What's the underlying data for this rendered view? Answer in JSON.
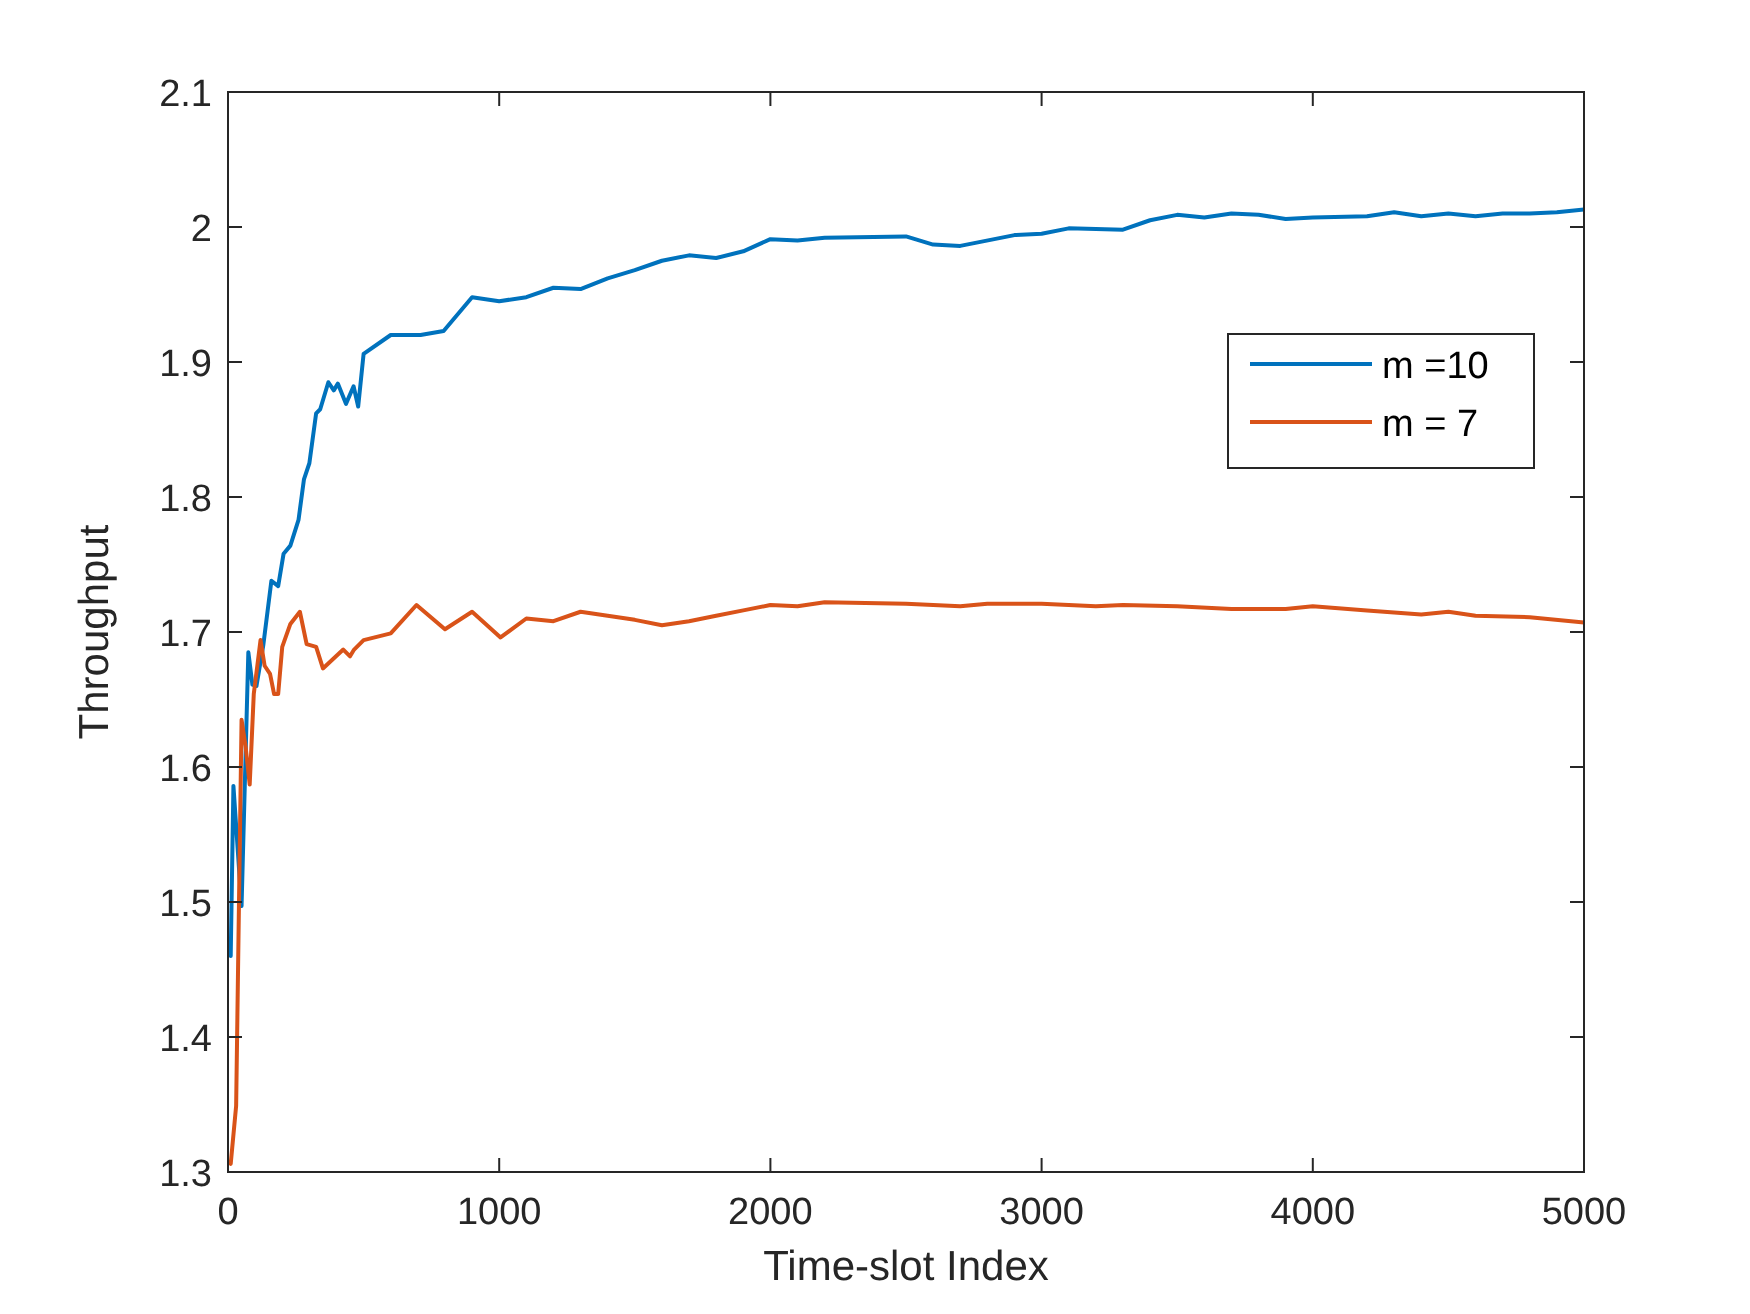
{
  "chart_data": {
    "type": "line",
    "xlabel": "Time-slot Index",
    "ylabel": "Throughput",
    "xlim": [
      0,
      5000
    ],
    "xticks": [
      0,
      1000,
      2000,
      3000,
      4000,
      5000
    ],
    "ylim": [
      1.3,
      2.1
    ],
    "yticks": [
      1.3,
      1.4,
      1.5,
      1.6,
      1.7,
      1.8,
      1.9,
      2,
      2.1
    ],
    "legend": "right",
    "grid": false,
    "line_style": "solid",
    "series": [
      {
        "name": "m =10",
        "color": "#0072bd",
        "x": [
          10,
          20,
          50,
          75,
          90,
          105,
          130,
          160,
          185,
          205,
          230,
          260,
          280,
          300,
          325,
          340,
          370,
          390,
          405,
          435,
          463,
          480,
          500,
          600,
          710,
          795,
          900,
          1000,
          1100,
          1200,
          1300,
          1400,
          1500,
          1600,
          1700,
          1800,
          1900,
          2000,
          2100,
          2200,
          2500,
          2600,
          2700,
          2900,
          3000,
          3100,
          3300,
          3400,
          3500,
          3600,
          3700,
          3800,
          3900,
          4000,
          4200,
          4300,
          4400,
          4500,
          4600,
          4700,
          4800,
          4900,
          5000
        ],
        "values": [
          1.46,
          1.586,
          1.497,
          1.685,
          1.661,
          1.66,
          1.69,
          1.738,
          1.734,
          1.758,
          1.764,
          1.783,
          1.813,
          1.825,
          1.862,
          1.865,
          1.885,
          1.879,
          1.884,
          1.869,
          1.882,
          1.867,
          1.906,
          1.92,
          1.92,
          1.923,
          1.948,
          1.945,
          1.948,
          1.955,
          1.954,
          1.962,
          1.968,
          1.975,
          1.979,
          1.977,
          1.982,
          1.991,
          1.99,
          1.992,
          1.993,
          1.987,
          1.986,
          1.994,
          1.995,
          1.999,
          1.998,
          2.005,
          2.009,
          2.007,
          2.01,
          2.009,
          2.006,
          2.007,
          2.008,
          2.011,
          2.008,
          2.01,
          2.008,
          2.01,
          2.01,
          2.011,
          2.013
        ]
      },
      {
        "name": "m = 7",
        "color": "#d95319",
        "x": [
          10,
          30,
          50,
          65,
          80,
          95,
          120,
          135,
          155,
          170,
          185,
          200,
          230,
          265,
          290,
          325,
          350,
          425,
          450,
          465,
          500,
          600,
          695,
          800,
          900,
          1005,
          1100,
          1200,
          1300,
          1400,
          1500,
          1600,
          1700,
          1800,
          1900,
          2000,
          2100,
          2200,
          2500,
          2700,
          2800,
          3000,
          3200,
          3300,
          3500,
          3700,
          3900,
          4000,
          4200,
          4400,
          4500,
          4600,
          4800,
          5000
        ],
        "values": [
          1.306,
          1.349,
          1.635,
          1.615,
          1.587,
          1.654,
          1.694,
          1.675,
          1.669,
          1.654,
          1.654,
          1.689,
          1.706,
          1.715,
          1.691,
          1.689,
          1.673,
          1.687,
          1.682,
          1.687,
          1.694,
          1.699,
          1.72,
          1.702,
          1.715,
          1.696,
          1.71,
          1.708,
          1.715,
          1.712,
          1.709,
          1.705,
          1.708,
          1.712,
          1.716,
          1.72,
          1.719,
          1.722,
          1.721,
          1.719,
          1.721,
          1.721,
          1.719,
          1.72,
          1.719,
          1.717,
          1.717,
          1.719,
          1.716,
          1.713,
          1.715,
          1.712,
          1.711,
          1.707
        ]
      }
    ]
  }
}
